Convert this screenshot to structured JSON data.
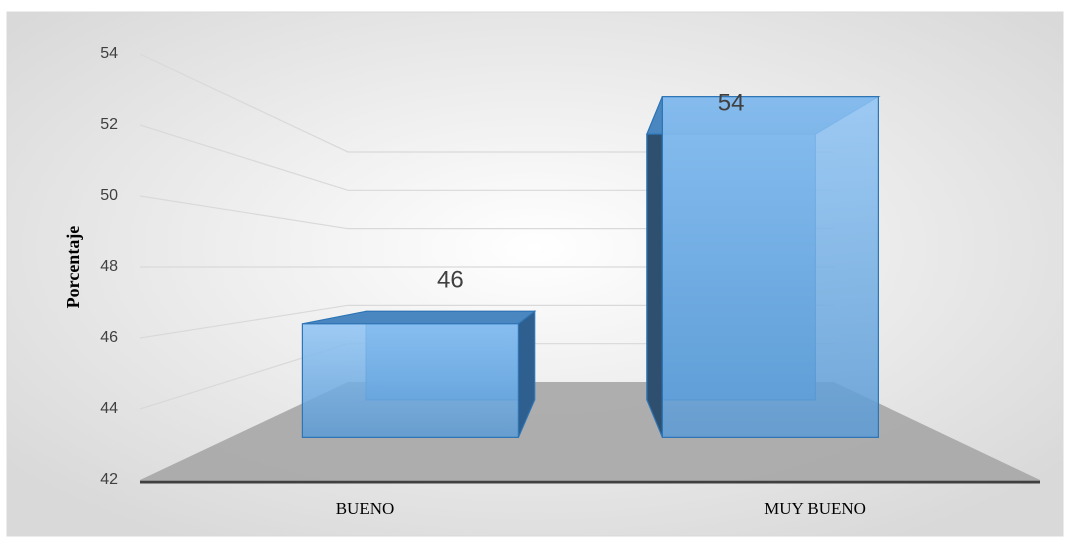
{
  "chart_data": {
    "type": "bar3d",
    "categories": [
      "BUENO",
      "MUY BUENO"
    ],
    "values": [
      46,
      54
    ],
    "color": "#5b9bd5",
    "y_label": "Porcentaje",
    "ylim": [
      42,
      54
    ],
    "yticks": [
      42,
      44,
      46,
      48,
      50,
      52,
      54
    ],
    "grid": true
  }
}
